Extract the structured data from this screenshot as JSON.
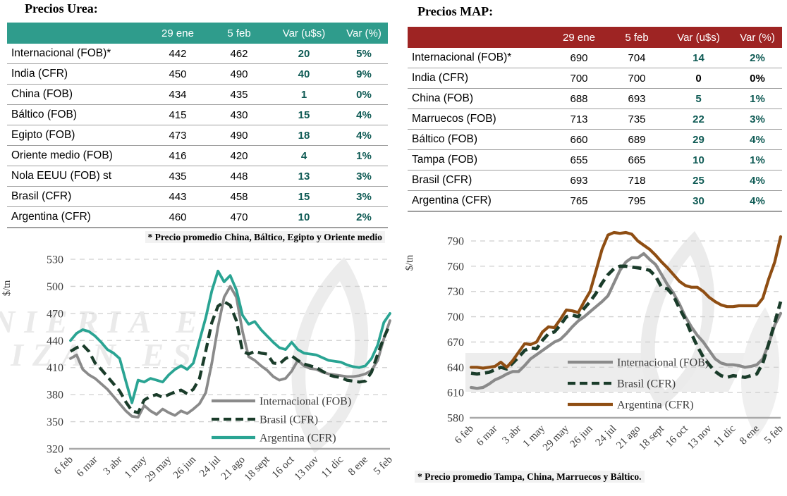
{
  "urea": {
    "title": "Precios Urea:",
    "footnote": "* Precio promedio China, Báltico, Egipto y Oriente medio",
    "watermark_lines": [
      "NIERIA E",
      "LIZAN ES"
    ],
    "table": {
      "headers": [
        "",
        "29 ene",
        "5 feb",
        "Var (u$s)",
        "Var (%)"
      ],
      "rows": [
        {
          "label": "Internacional (FOB)*",
          "v1": "442",
          "v2": "462",
          "var_usd": "20",
          "var_pct": "5%",
          "var_black": false
        },
        {
          "label": "India (CFR)",
          "v1": "450",
          "v2": "490",
          "var_usd": "40",
          "var_pct": "9%",
          "var_black": false
        },
        {
          "label": "China (FOB)",
          "v1": "434",
          "v2": "435",
          "var_usd": "1",
          "var_pct": "0%",
          "var_black": false
        },
        {
          "label": "Báltico (FOB)",
          "v1": "415",
          "v2": "430",
          "var_usd": "15",
          "var_pct": "4%",
          "var_black": false
        },
        {
          "label": "Egipto (FOB)",
          "v1": "473",
          "v2": "490",
          "var_usd": "18",
          "var_pct": "4%",
          "var_black": false
        },
        {
          "label": "Oriente medio (FOB)",
          "v1": "416",
          "v2": "420",
          "var_usd": "4",
          "var_pct": "1%",
          "var_black": false
        },
        {
          "label": "Nola EEUU (FOB) st",
          "v1": "435",
          "v2": "448",
          "var_usd": "13",
          "var_pct": "3%",
          "var_black": false
        },
        {
          "label": "Brasil (CFR)",
          "v1": "443",
          "v2": "458",
          "var_usd": "15",
          "var_pct": "3%",
          "var_black": false
        },
        {
          "label": "Argentina (CFR)",
          "v1": "460",
          "v2": "470",
          "var_usd": "10",
          "var_pct": "2%",
          "var_black": false
        }
      ]
    }
  },
  "map": {
    "title": "Precios MAP:",
    "footnote": "* Precio promedio Tampa, China, Marruecos y Báltico.",
    "table": {
      "headers": [
        "",
        "29 ene",
        "5 feb",
        "Var (u$s)",
        "Var (%)"
      ],
      "rows": [
        {
          "label": "Internacional (FOB)*",
          "v1": "690",
          "v2": "704",
          "var_usd": "14",
          "var_pct": "2%",
          "var_black": false
        },
        {
          "label": "India (CFR)",
          "v1": "700",
          "v2": "700",
          "var_usd": "0",
          "var_pct": "0%",
          "var_black": true
        },
        {
          "label": "China (FOB)",
          "v1": "688",
          "v2": "693",
          "var_usd": "5",
          "var_pct": "1%",
          "var_black": false
        },
        {
          "label": "Marruecos (FOB)",
          "v1": "713",
          "v2": "735",
          "var_usd": "22",
          "var_pct": "3%",
          "var_black": false
        },
        {
          "label": "Báltico (FOB)",
          "v1": "660",
          "v2": "689",
          "var_usd": "29",
          "var_pct": "4%",
          "var_black": false
        },
        {
          "label": "Tampa (FOB)",
          "v1": "655",
          "v2": "665",
          "var_usd": "10",
          "var_pct": "1%",
          "var_black": false
        },
        {
          "label": "Brasil (CFR)",
          "v1": "693",
          "v2": "718",
          "var_usd": "25",
          "var_pct": "4%",
          "var_black": false
        },
        {
          "label": "Argentina (CFR)",
          "v1": "765",
          "v2": "795",
          "var_usd": "30",
          "var_pct": "4%",
          "var_black": false
        }
      ]
    }
  },
  "chart_data": [
    {
      "id": "urea",
      "type": "line",
      "title": "",
      "xlabel": "",
      "ylabel": "$/tn",
      "ylim": [
        320,
        530
      ],
      "ytick_step": 30,
      "grid": "horizontal dashed",
      "legend_position": "inside lower right",
      "x_resolution": "weekly, tick labels every 4 weeks",
      "x_tick_labels": [
        "6 feb",
        "6 mar",
        "3 abr",
        "1 may",
        "29 may",
        "26 jun",
        "24 jul",
        "21 ago",
        "18 sept",
        "16 oct",
        "13 nov",
        "11 dic",
        "8 ene",
        "5 feb"
      ],
      "series": [
        {
          "name": "Internacional (FOB)",
          "color": "#8a8a8a",
          "dash": "solid",
          "values": [
            420,
            424,
            408,
            402,
            398,
            392,
            386,
            378,
            370,
            362,
            356,
            355,
            368,
            362,
            358,
            364,
            360,
            357,
            362,
            359,
            364,
            370,
            382,
            415,
            455,
            488,
            500,
            488,
            450,
            422,
            418,
            412,
            407,
            400,
            396,
            398,
            406,
            418,
            412,
            409,
            408,
            405,
            403,
            402,
            401,
            400,
            400,
            401,
            403,
            407,
            418,
            442,
            462
          ]
        },
        {
          "name": "Brasil (CFR)",
          "color": "#1a3c2a",
          "dash": "dashed",
          "values": [
            428,
            432,
            435,
            428,
            415,
            408,
            400,
            392,
            384,
            372,
            362,
            360,
            374,
            378,
            380,
            377,
            380,
            383,
            385,
            381,
            386,
            398,
            428,
            460,
            478,
            483,
            479,
            462,
            428,
            425,
            428,
            426,
            425,
            415,
            414,
            420,
            423,
            418,
            414,
            412,
            410,
            406,
            402,
            400,
            399,
            396,
            395,
            394,
            395,
            405,
            425,
            443,
            458
          ]
        },
        {
          "name": "Argentina (CFR)",
          "color": "#2aa493",
          "dash": "solid",
          "values": [
            440,
            448,
            452,
            450,
            445,
            438,
            430,
            426,
            420,
            395,
            371,
            396,
            394,
            398,
            396,
            394,
            402,
            408,
            412,
            408,
            415,
            440,
            465,
            495,
            517,
            505,
            512,
            496,
            468,
            458,
            461,
            452,
            445,
            438,
            432,
            430,
            438,
            430,
            426,
            425,
            424,
            421,
            418,
            417,
            416,
            413,
            411,
            410,
            412,
            420,
            435,
            460,
            470
          ]
        }
      ]
    },
    {
      "id": "map",
      "type": "line",
      "title": "",
      "xlabel": "",
      "ylabel": "$/tn",
      "ylim": [
        580,
        790
      ],
      "ytick_step": 30,
      "grid": "horizontal dashed",
      "legend_position": "inside right",
      "x_resolution": "weekly, tick labels every 4 weeks",
      "x_tick_labels": [
        "6 feb",
        "6 mar",
        "3 abr",
        "1 may",
        "29 may",
        "26 jun",
        "24 jul",
        "21 ago",
        "18 sept",
        "16 oct",
        "13 nov",
        "11 dic",
        "8 ene",
        "5 feb"
      ],
      "series": [
        {
          "name": "Internacional (FOB)",
          "color": "#8a8a8a",
          "dash": "solid",
          "values": [
            616,
            615,
            616,
            620,
            625,
            628,
            632,
            635,
            635,
            642,
            650,
            655,
            660,
            665,
            670,
            673,
            680,
            688,
            695,
            700,
            706,
            712,
            718,
            725,
            740,
            755,
            765,
            770,
            770,
            775,
            768,
            762,
            750,
            738,
            728,
            715,
            700,
            688,
            678,
            670,
            660,
            650,
            645,
            643,
            643,
            642,
            640,
            641,
            643,
            650,
            668,
            690,
            704
          ]
        },
        {
          "name": "Brasil (CFR)",
          "color": "#1a3c2a",
          "dash": "dashed",
          "values": [
            633,
            632,
            633,
            634,
            637,
            640,
            638,
            645,
            652,
            660,
            663,
            662,
            672,
            680,
            682,
            690,
            700,
            702,
            700,
            710,
            718,
            728,
            740,
            750,
            757,
            760,
            760,
            759,
            758,
            757,
            755,
            748,
            735,
            733,
            725,
            710,
            697,
            680,
            665,
            652,
            643,
            635,
            630,
            628,
            630,
            629,
            628,
            630,
            632,
            645,
            668,
            693,
            718
          ]
        },
        {
          "name": "Argentina (CFR)",
          "color": "#8f4e13",
          "dash": "solid",
          "values": [
            640,
            640,
            639,
            640,
            641,
            646,
            640,
            648,
            658,
            668,
            667,
            670,
            682,
            688,
            687,
            697,
            708,
            707,
            705,
            718,
            730,
            755,
            780,
            797,
            800,
            799,
            800,
            798,
            790,
            785,
            780,
            773,
            765,
            758,
            750,
            742,
            737,
            735,
            735,
            730,
            723,
            718,
            714,
            712,
            712,
            713,
            713,
            713,
            713,
            722,
            745,
            765,
            795
          ]
        }
      ]
    }
  ],
  "colors": {
    "urea_header": "#2f9c8c",
    "map_header": "#9e2423",
    "var_text": "#0e5a54",
    "grid": "#cfcfcf",
    "axis": "#a8a8a8",
    "tick_text": "#3c3c3c"
  }
}
